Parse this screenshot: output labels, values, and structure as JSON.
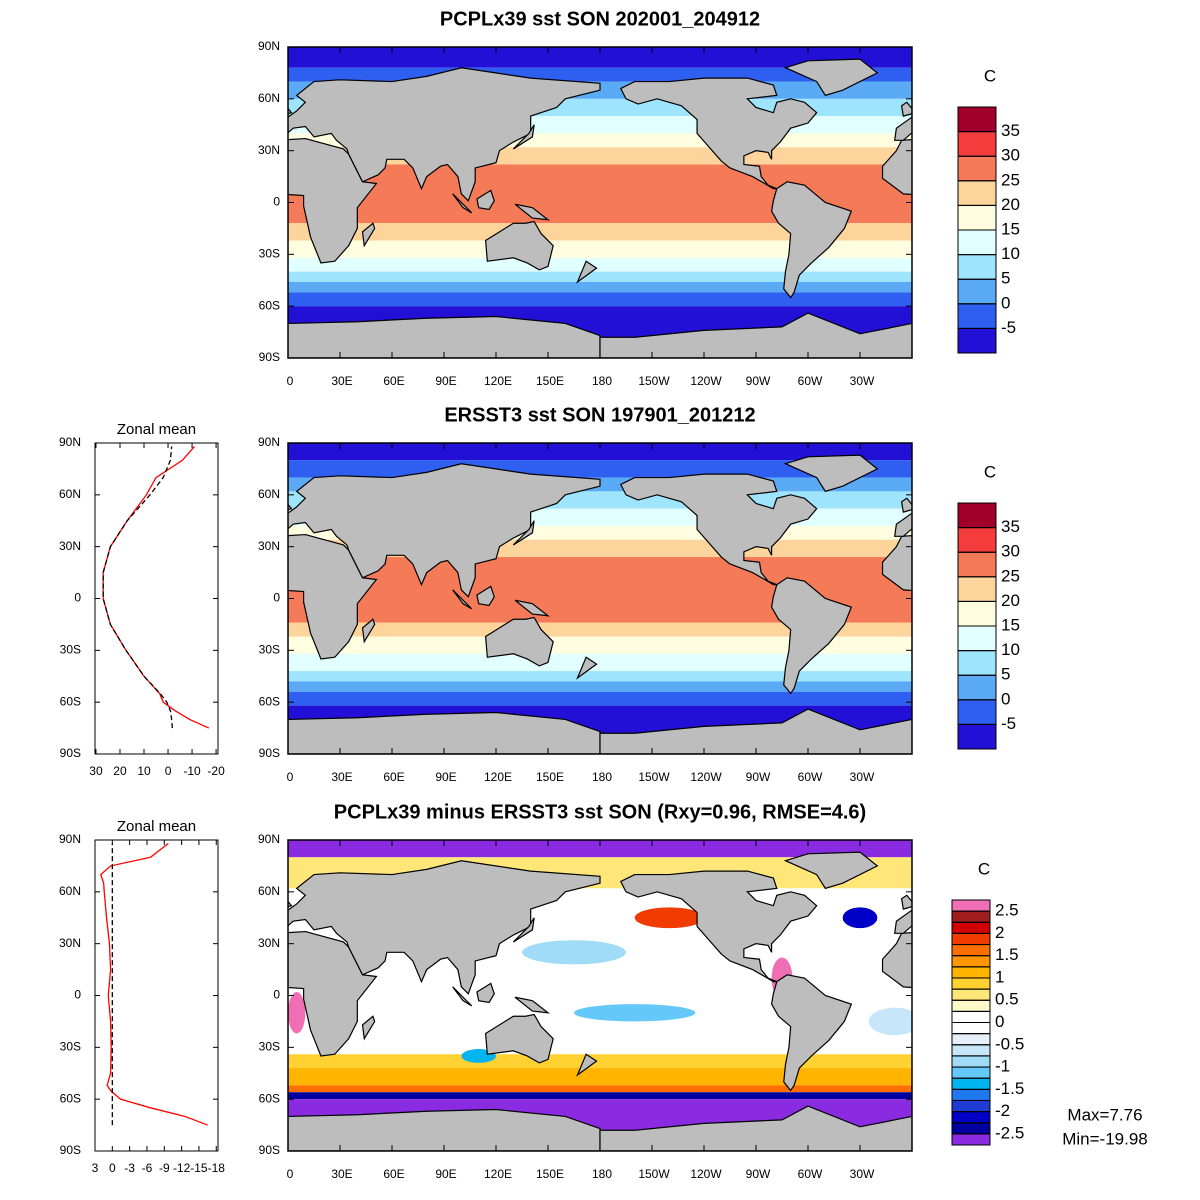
{
  "chart_data": [
    {
      "type": "map",
      "title": "PCPLx39 sst SON 202001_204912",
      "units": "C",
      "xlim": [
        0,
        360
      ],
      "ylim": [
        -90,
        90
      ],
      "xticks": [
        0,
        {
          "value": 30,
          "label": "30E"
        },
        {
          "value": 60,
          "label": "60E"
        },
        {
          "value": 90,
          "label": "90E"
        },
        {
          "value": 120,
          "label": "120E"
        },
        {
          "value": 150,
          "label": "150E"
        },
        180,
        {
          "value": 210,
          "label": "150W"
        },
        {
          "value": 240,
          "label": "120W"
        },
        {
          "value": 270,
          "label": "90W"
        },
        {
          "value": 300,
          "label": "60W"
        },
        {
          "value": 330,
          "label": "30W"
        }
      ],
      "yticks": [
        {
          "value": -90,
          "label": "90S"
        },
        {
          "value": -60,
          "label": "60S"
        },
        {
          "value": -30,
          "label": "30S"
        },
        0,
        {
          "value": 30,
          "label": "30N"
        },
        {
          "value": 60,
          "label": "60N"
        },
        {
          "value": 90,
          "label": "90N"
        }
      ],
      "levels": [
        -5,
        0,
        5,
        10,
        15,
        20,
        25,
        30,
        35
      ],
      "colors": [
        "#2310d6",
        "#2f5ff0",
        "#5aaaf5",
        "#9ee4fc",
        "#e2ffff",
        "#fffde0",
        "#fdd49b",
        "#f57a58",
        "#f43c3c",
        "#a0002a"
      ]
    },
    {
      "type": "line",
      "title": "Zonal mean",
      "xlim": [
        30.4,
        -20.8
      ],
      "ylim": [
        -90,
        90
      ],
      "xticks": [
        30,
        20,
        10,
        0,
        -10,
        -20
      ],
      "yticks": [
        {
          "value": -90,
          "label": "90S"
        },
        {
          "value": -60,
          "label": "60S"
        },
        {
          "value": -30,
          "label": "30S"
        },
        0,
        {
          "value": 30,
          "label": "30N"
        },
        {
          "value": 60,
          "label": "60N"
        },
        {
          "value": 90,
          "label": "90N"
        }
      ],
      "y": [
        -75,
        -70,
        -65,
        -60,
        -55,
        -45,
        -30,
        -15,
        0,
        15,
        30,
        45,
        60,
        70,
        80,
        88
      ],
      "series": [
        {
          "color": "#ff0000",
          "style": "solid",
          "values": [
            -17,
            -9,
            -3,
            2,
            3.5,
            10,
            17.5,
            24,
            27,
            27,
            24,
            17,
            9,
            5,
            -6,
            -11
          ]
        },
        {
          "color": "#000000",
          "style": "dashed",
          "values": [
            -1.8,
            -1.5,
            -1,
            0.5,
            3.3,
            10,
            17.5,
            24,
            27,
            27,
            24,
            17,
            7.5,
            2,
            -1,
            -1.5
          ]
        }
      ]
    },
    {
      "type": "map",
      "title": "ERSST3 sst SON 197901_201212",
      "units": "C",
      "xlim": [
        0,
        360
      ],
      "ylim": [
        -90,
        90
      ],
      "xticks": [
        0,
        {
          "value": 30,
          "label": "30E"
        },
        {
          "value": 60,
          "label": "60E"
        },
        {
          "value": 90,
          "label": "90E"
        },
        {
          "value": 120,
          "label": "120E"
        },
        {
          "value": 150,
          "label": "150E"
        },
        180,
        {
          "value": 210,
          "label": "150W"
        },
        {
          "value": 240,
          "label": "120W"
        },
        {
          "value": 270,
          "label": "90W"
        },
        {
          "value": 300,
          "label": "60W"
        },
        {
          "value": 330,
          "label": "30W"
        }
      ],
      "yticks": [
        {
          "value": -90,
          "label": "90S"
        },
        {
          "value": -60,
          "label": "60S"
        },
        {
          "value": -30,
          "label": "30S"
        },
        0,
        {
          "value": 30,
          "label": "30N"
        },
        {
          "value": 60,
          "label": "60N"
        },
        {
          "value": 90,
          "label": "90N"
        }
      ],
      "levels": [
        -5,
        0,
        5,
        10,
        15,
        20,
        25,
        30,
        35
      ],
      "colors": [
        "#2310d6",
        "#2f5ff0",
        "#5aaaf5",
        "#9ee4fc",
        "#e2ffff",
        "#fffde0",
        "#fdd49b",
        "#f57a58",
        "#f43c3c",
        "#a0002a"
      ]
    },
    {
      "type": "line",
      "title": "Zonal mean",
      "xlim": [
        3,
        -18.3
      ],
      "ylim": [
        -90,
        90
      ],
      "xticks": [
        3,
        0,
        -3,
        -6,
        -9,
        -12,
        -15,
        -18
      ],
      "yticks": [
        {
          "value": -90,
          "label": "90S"
        },
        {
          "value": -60,
          "label": "60S"
        },
        {
          "value": -30,
          "label": "30S"
        },
        0,
        {
          "value": 30,
          "label": "30N"
        },
        {
          "value": 60,
          "label": "60N"
        },
        {
          "value": 90,
          "label": "90N"
        }
      ],
      "y": [
        -75,
        -70,
        -65,
        -60,
        -55,
        -52,
        -45,
        -30,
        -15,
        0,
        15,
        30,
        45,
        60,
        65,
        70,
        75,
        80,
        88
      ],
      "series": [
        {
          "color": "#ff0000",
          "style": "solid",
          "values": [
            -16.5,
            -12.6,
            -6.6,
            -1.4,
            0.3,
            0.9,
            0.3,
            0.2,
            0.3,
            0.7,
            0.3,
            0.5,
            1,
            1.4,
            1.5,
            2,
            0.3,
            -6.6,
            -9.7
          ]
        },
        {
          "color": "#000000",
          "style": "dashed",
          "values": [
            0,
            0,
            0,
            0,
            0,
            0,
            0,
            0,
            0,
            0,
            0,
            0,
            0,
            0,
            0,
            0,
            0,
            0,
            0
          ]
        }
      ]
    },
    {
      "type": "map",
      "title": "PCPLx39 minus ERSST3 sst SON (Rxy=0.96, RMSE=4.6)",
      "units": "C",
      "xlim": [
        0,
        360
      ],
      "ylim": [
        -90,
        90
      ],
      "xticks": [
        0,
        {
          "value": 30,
          "label": "30E"
        },
        {
          "value": 60,
          "label": "60E"
        },
        {
          "value": 90,
          "label": "90E"
        },
        {
          "value": 120,
          "label": "120E"
        },
        {
          "value": 150,
          "label": "150E"
        },
        180,
        {
          "value": 210,
          "label": "150W"
        },
        {
          "value": 240,
          "label": "120W"
        },
        {
          "value": 270,
          "label": "90W"
        },
        {
          "value": 300,
          "label": "60W"
        },
        {
          "value": 330,
          "label": "30W"
        }
      ],
      "yticks": [
        {
          "value": -90,
          "label": "90S"
        },
        {
          "value": -60,
          "label": "60S"
        },
        {
          "value": -30,
          "label": "30S"
        },
        0,
        {
          "value": 30,
          "label": "30N"
        },
        {
          "value": 60,
          "label": "60N"
        },
        {
          "value": 90,
          "label": "90N"
        }
      ],
      "levels": [
        -2.5,
        -2.25,
        -2,
        -1.75,
        -1.5,
        -1.25,
        -1,
        -0.75,
        -0.5,
        -0.25,
        0,
        0.25,
        0.5,
        0.75,
        1,
        1.25,
        1.5,
        1.75,
        2,
        2.25,
        2.5
      ],
      "cbticks": [
        -2.5,
        -2,
        -1.5,
        -1,
        -0.5,
        0,
        0.5,
        1,
        1.5,
        2,
        2.5
      ],
      "colors": [
        "#8a2be2",
        "#0000a0",
        "#0000c8",
        "#1e3cd2",
        "#1e78f0",
        "#00b4f0",
        "#64c8fa",
        "#a0dcf8",
        "#c8e6fa",
        "#e6f0fa",
        "#ffffff",
        "#ffffff",
        "#fffac8",
        "#ffe678",
        "#ffd232",
        "#ffb400",
        "#ff9600",
        "#ff6e00",
        "#f03c00",
        "#d20000",
        "#a01e1e",
        "#f06eb4"
      ],
      "annotations": [
        "Max=7.76",
        "Min=-19.98"
      ]
    }
  ]
}
